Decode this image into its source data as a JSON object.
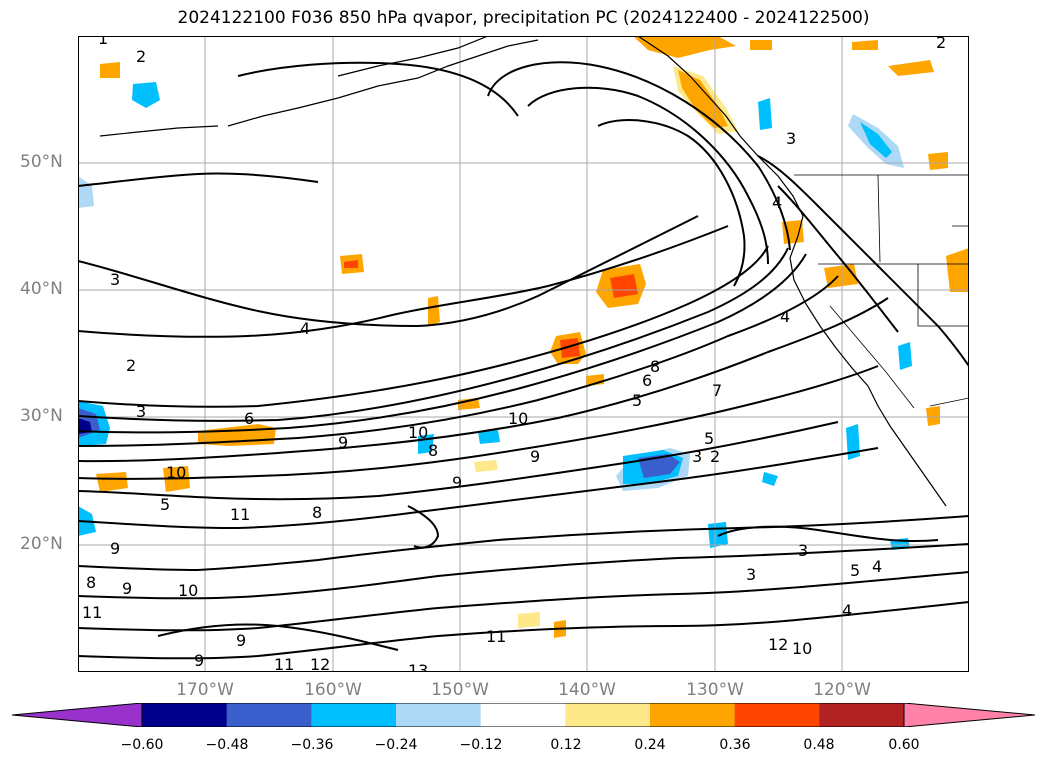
{
  "title": "2024122100 F036 850 hPa qvapor, precipitation PC (2024122400 - 2024122500)",
  "lat_labels": [
    "50°N",
    "40°N",
    "30°N",
    "20°N"
  ],
  "lon_labels": [
    "170°W",
    "160°W",
    "150°W",
    "140°W",
    "130°W",
    "120°W"
  ],
  "colorbar": {
    "colors": [
      "#9932cc",
      "#00008b",
      "#3a5fcd",
      "#00bfff",
      "#add8f6",
      "#ffffff",
      "#fde98a",
      "#ffa500",
      "#ff4500",
      "#b22222",
      "#ff82a9"
    ],
    "tick_labels": [
      "−0.60",
      "−0.48",
      "−0.36",
      "−0.24",
      "−0.12",
      "0.12",
      "0.24",
      "0.36",
      "0.48",
      "0.60"
    ]
  },
  "contour_labels": [
    {
      "text": "1"
    },
    {
      "text": "2"
    },
    {
      "text": "3"
    },
    {
      "text": "2"
    },
    {
      "text": "4"
    },
    {
      "text": "3"
    },
    {
      "text": "4"
    },
    {
      "text": "4"
    },
    {
      "text": "2"
    },
    {
      "text": "3"
    },
    {
      "text": "6"
    },
    {
      "text": "9"
    },
    {
      "text": "10"
    },
    {
      "text": "10"
    },
    {
      "text": "8"
    },
    {
      "text": "5"
    },
    {
      "text": "7"
    },
    {
      "text": "10"
    },
    {
      "text": "5"
    },
    {
      "text": "6"
    },
    {
      "text": "8"
    },
    {
      "text": "9"
    },
    {
      "text": "9"
    },
    {
      "text": "5"
    },
    {
      "text": "3"
    },
    {
      "text": "2"
    },
    {
      "text": "9"
    },
    {
      "text": "8"
    },
    {
      "text": "10"
    },
    {
      "text": "11"
    },
    {
      "text": "9"
    },
    {
      "text": "9"
    },
    {
      "text": "9"
    },
    {
      "text": "11"
    },
    {
      "text": "12"
    },
    {
      "text": "13"
    },
    {
      "text": "11"
    },
    {
      "text": "12"
    },
    {
      "text": "10"
    },
    {
      "text": "4"
    },
    {
      "text": "3"
    },
    {
      "text": "3"
    },
    {
      "text": "4"
    },
    {
      "text": "5"
    },
    {
      "text": "11"
    },
    {
      "text": "8"
    }
  ]
}
